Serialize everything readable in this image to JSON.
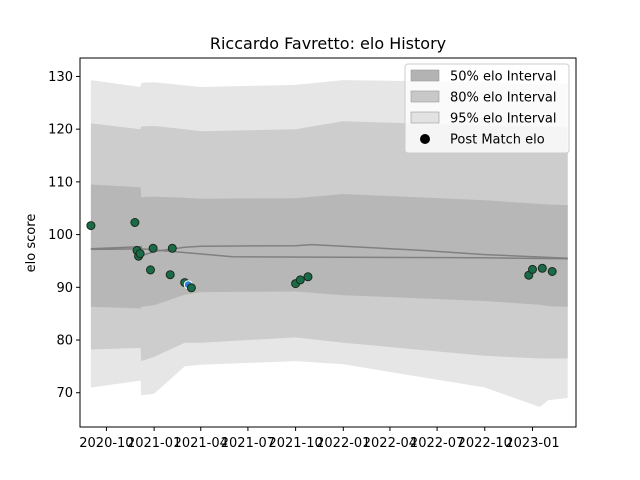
{
  "chart_data": {
    "type": "line",
    "title": "Riccardo Favretto: elo History",
    "xlabel": "",
    "ylabel": "elo score",
    "ylim": [
      63.5,
      133.5
    ],
    "yticks": [
      70,
      80,
      90,
      100,
      110,
      120,
      130
    ],
    "x_range": [
      "2020-08-11",
      "2023-03-26"
    ],
    "xticks": [
      "2020-10",
      "2021-01",
      "2021-04",
      "2021-07",
      "2021-10",
      "2022-01",
      "2022-04",
      "2022-07",
      "2022-10",
      "2023-01"
    ],
    "legend": {
      "placement": "top-right",
      "entries": [
        "50% elo Interval",
        "80% elo Interval",
        "95% elo Interval",
        "Post Match elo"
      ]
    },
    "colors": {
      "band50": "#b3b3b3",
      "band80": "#c8c8c8",
      "band95": "#e2e2e2",
      "mean_line": "#808080",
      "point": "#1a6b4a",
      "point_highlight": "#2f7fd6",
      "point_edge": "#1a2a1a"
    },
    "series": [
      {
        "kind": "interval_band",
        "level": "95%",
        "x": [
          "2020-09-01",
          "2020-12-06",
          "2020-12-07",
          "2021-01-01",
          "2021-03-01",
          "2021-04-01",
          "2021-10-01",
          "2022-01-01",
          "2022-10-01",
          "2023-01-15",
          "2023-02-01",
          "2023-03-10"
        ],
        "upper": [
          129.3,
          128.0,
          128.8,
          128.9,
          128.3,
          128.0,
          128.4,
          129.3,
          128.9,
          128.5,
          128.8,
          128.5
        ],
        "lower": [
          71.0,
          72.3,
          69.5,
          69.8,
          75.0,
          75.3,
          76.0,
          75.4,
          71.0,
          67.3,
          68.6,
          69.0
        ]
      },
      {
        "kind": "interval_band",
        "level": "80%",
        "x": [
          "2020-09-01",
          "2020-12-06",
          "2020-12-07",
          "2021-01-01",
          "2021-03-01",
          "2021-04-01",
          "2021-10-01",
          "2022-01-01",
          "2022-10-01",
          "2023-01-15",
          "2023-02-01",
          "2023-03-10"
        ],
        "upper": [
          121.1,
          120.0,
          120.5,
          120.6,
          120.0,
          119.6,
          120.0,
          121.5,
          120.7,
          120.5,
          120.6,
          120.3
        ],
        "lower": [
          78.2,
          78.5,
          76.0,
          76.8,
          79.5,
          79.5,
          80.5,
          79.5,
          77.0,
          76.5,
          76.5,
          76.5
        ]
      },
      {
        "kind": "interval_band",
        "level": "50%",
        "x": [
          "2020-09-01",
          "2020-12-06",
          "2020-12-07",
          "2021-01-01",
          "2021-03-01",
          "2021-04-01",
          "2021-10-01",
          "2022-01-01",
          "2022-10-01",
          "2023-01-15",
          "2023-02-01",
          "2023-03-10"
        ],
        "upper": [
          109.5,
          109.0,
          107.1,
          107.2,
          107.0,
          106.8,
          106.9,
          107.7,
          106.5,
          105.8,
          105.7,
          105.6
        ],
        "lower": [
          86.3,
          86.0,
          86.3,
          86.6,
          88.6,
          89.1,
          89.2,
          88.5,
          87.4,
          86.7,
          86.4,
          86.3
        ]
      },
      {
        "kind": "mean_line",
        "x": [
          "2020-09-01",
          "2020-12-07",
          "2020-12-08",
          "2021-01-01",
          "2021-03-01",
          "2021-04-01",
          "2021-10-01",
          "2021-11-01",
          "2022-06-01",
          "2022-10-01",
          "2023-03-10"
        ],
        "y": [
          97.3,
          97.7,
          96.0,
          96.8,
          97.6,
          97.8,
          97.9,
          98.1,
          97.0,
          96.2,
          95.5
        ]
      },
      {
        "kind": "mean_line",
        "x": [
          "2020-09-01",
          "2020-12-07",
          "2021-06-01",
          "2022-01-01",
          "2022-10-01",
          "2023-03-10"
        ],
        "y": [
          97.2,
          97.3,
          95.8,
          95.7,
          95.6,
          95.4
        ]
      },
      {
        "kind": "points",
        "name": "Post Match elo",
        "x": [
          "2020-09-01",
          "2020-11-25",
          "2020-11-29",
          "2020-12-02",
          "2020-12-05",
          "2020-12-25",
          "2020-12-30",
          "2021-02-01",
          "2021-02-05",
          "2021-03-01",
          "2021-03-08",
          "2021-03-14",
          "2021-10-01",
          "2021-10-10",
          "2021-10-25",
          "2022-12-25",
          "2023-01-01",
          "2023-01-20",
          "2023-02-08"
        ],
        "y": [
          101.7,
          102.3,
          97.0,
          95.9,
          96.4,
          93.3,
          97.4,
          92.4,
          97.4,
          90.9,
          90.5,
          89.9,
          90.7,
          91.4,
          92.0,
          92.3,
          93.4,
          93.6,
          93.0
        ],
        "highlight_index": 10
      }
    ]
  }
}
